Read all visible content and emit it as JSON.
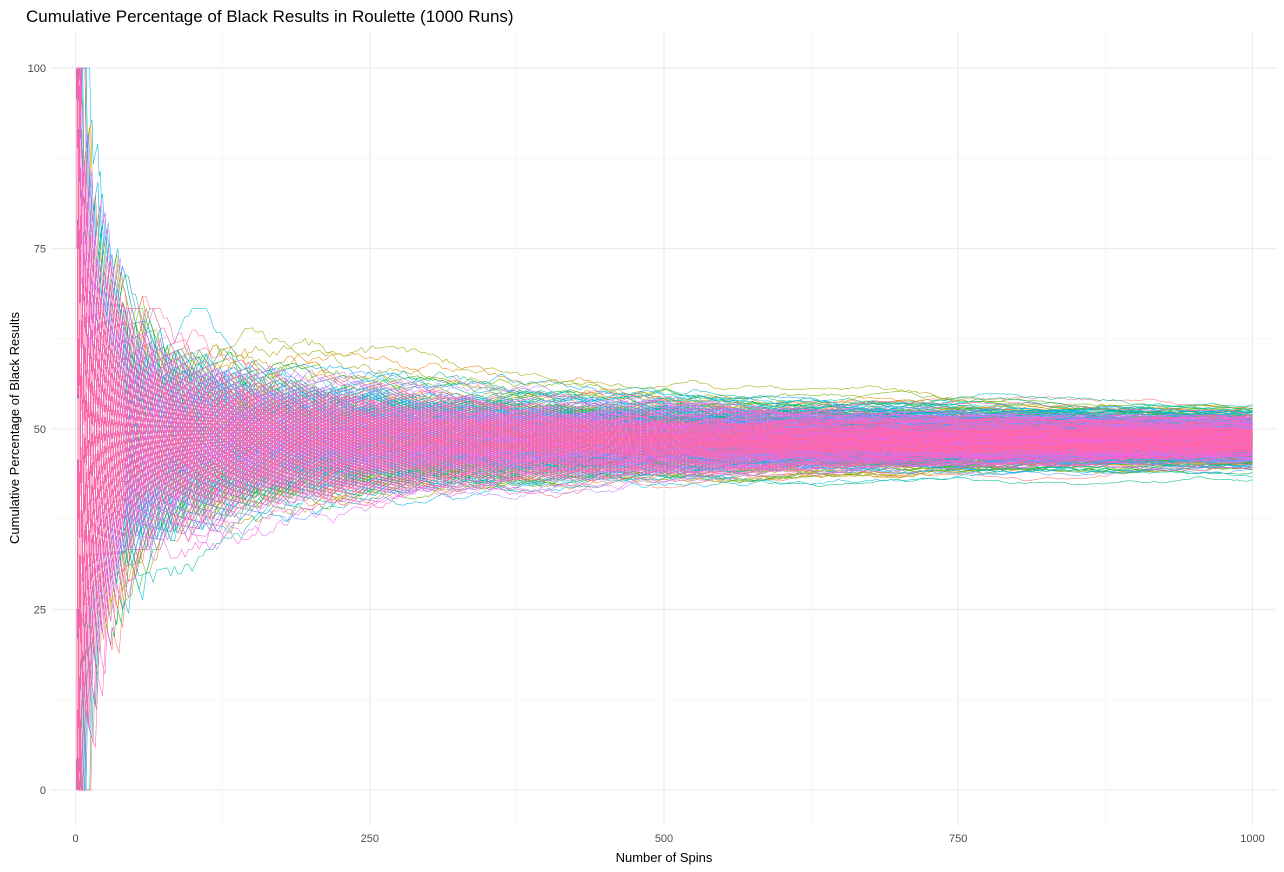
{
  "chart_data": {
    "type": "line",
    "title": "Cumulative Percentage of Black Results in Roulette (1000 Runs)",
    "xlabel": "Number of Spins",
    "ylabel": "Cumulative Percentage of Black Results",
    "xlim": [
      -20,
      1020
    ],
    "ylim": [
      -5,
      105
    ],
    "x_ticks": [
      0,
      250,
      500,
      750,
      1000
    ],
    "x_tick_labels": [
      "0",
      "250",
      "500",
      "750",
      "1000"
    ],
    "y_ticks": [
      0,
      25,
      50,
      75,
      100
    ],
    "y_tick_labels": [
      "0",
      "25",
      "50",
      "75",
      "100"
    ],
    "grid": true,
    "legend": "none",
    "n_runs": 1000,
    "spins_per_run": 1000,
    "p_black": 0.4865,
    "final_range": [
      42.5,
      53.5
    ],
    "palette": [
      "#F8766D",
      "#E58700",
      "#C99800",
      "#A3A500",
      "#6BB100",
      "#00BA38",
      "#00BF7D",
      "#00C0AF",
      "#00BCD8",
      "#00B0F6",
      "#619CFF",
      "#B983FF",
      "#E76BF3",
      "#FD61D1",
      "#FF67A4"
    ]
  }
}
